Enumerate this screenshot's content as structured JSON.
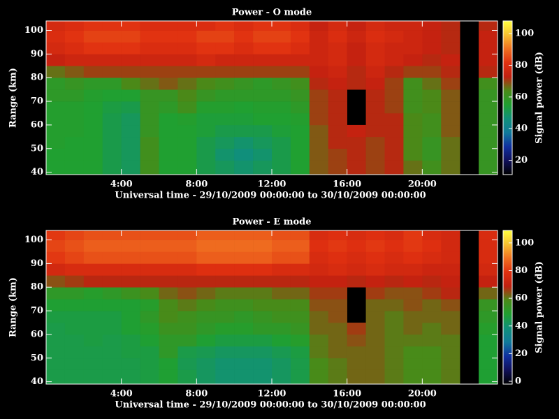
{
  "chart_data": [
    {
      "type": "heatmap",
      "title": "Power - O mode",
      "x_label": "Universal time - 29/10/2009 00:00:00 to 30/10/2009 00:00:00",
      "y_label": "Range (km)",
      "colorbar_label": "Signal power (dB)",
      "xbins": [
        0,
        1,
        2,
        3,
        4,
        5,
        6,
        7,
        8,
        9,
        10,
        11,
        12,
        13,
        14,
        15,
        16,
        17,
        18,
        19,
        20,
        21,
        22,
        23,
        24
      ],
      "ybins": [
        39,
        45,
        50,
        55,
        60,
        65,
        70,
        75,
        80,
        85,
        90,
        95,
        100,
        104
      ],
      "xlim": [
        0,
        24
      ],
      "ylim": [
        39,
        104
      ],
      "clim": [
        11,
        108
      ],
      "xticks": [
        {
          "value": 4,
          "label": "4:00"
        },
        {
          "value": 8,
          "label": "8:00"
        },
        {
          "value": 12,
          "label": "12:00"
        },
        {
          "value": 16,
          "label": "16:00"
        },
        {
          "value": 20,
          "label": "20:00"
        }
      ],
      "yticks": [
        40,
        50,
        60,
        70,
        80,
        90,
        100
      ],
      "cticks": [
        20,
        40,
        60,
        80,
        100
      ],
      "colors": [
        "#000000",
        "#10105a",
        "#1030a0",
        "#107a9a",
        "#10907a",
        "#20a030",
        "#4a8a18",
        "#c02010",
        "#e03010",
        "#f07020",
        "#f8c030",
        "#ffff40"
      ],
      "values": [
        [
          55,
          55,
          55,
          52,
          50,
          62,
          55,
          55,
          52,
          50,
          48,
          50,
          52,
          55,
          68,
          70,
          72,
          70,
          72,
          66,
          62,
          66,
          null,
          60
        ],
        [
          55,
          55,
          55,
          52,
          50,
          62,
          55,
          55,
          52,
          48,
          46,
          48,
          52,
          55,
          68,
          70,
          72,
          70,
          72,
          64,
          60,
          66,
          null,
          60
        ],
        [
          56,
          55,
          55,
          52,
          50,
          62,
          55,
          55,
          52,
          50,
          48,
          50,
          52,
          55,
          68,
          72,
          72,
          70,
          72,
          64,
          60,
          66,
          null,
          60
        ],
        [
          56,
          56,
          55,
          52,
          50,
          60,
          55,
          55,
          54,
          52,
          52,
          52,
          54,
          55,
          68,
          72,
          74,
          72,
          72,
          64,
          62,
          68,
          null,
          60
        ],
        [
          56,
          56,
          55,
          52,
          50,
          60,
          55,
          56,
          54,
          54,
          54,
          55,
          55,
          56,
          70,
          72,
          null,
          72,
          72,
          64,
          62,
          68,
          null,
          60
        ],
        [
          56,
          56,
          55,
          53,
          52,
          60,
          58,
          62,
          56,
          56,
          55,
          56,
          56,
          58,
          70,
          72,
          null,
          72,
          70,
          62,
          64,
          68,
          null,
          60
        ],
        [
          58,
          58,
          56,
          55,
          55,
          60,
          60,
          64,
          60,
          58,
          58,
          58,
          58,
          60,
          70,
          72,
          null,
          72,
          70,
          62,
          64,
          68,
          null,
          60
        ],
        [
          58,
          60,
          58,
          58,
          64,
          66,
          68,
          66,
          64,
          62,
          60,
          58,
          60,
          62,
          72,
          74,
          72,
          74,
          70,
          62,
          66,
          70,
          null,
          62
        ],
        [
          66,
          68,
          70,
          70,
          70,
          70,
          70,
          70,
          70,
          70,
          70,
          70,
          70,
          70,
          74,
          76,
          72,
          76,
          72,
          70,
          70,
          72,
          null,
          72
        ],
        [
          74,
          76,
          76,
          76,
          76,
          76,
          76,
          76,
          78,
          76,
          76,
          76,
          76,
          76,
          76,
          78,
          74,
          78,
          76,
          74,
          72,
          74,
          null,
          74
        ],
        [
          78,
          80,
          82,
          82,
          82,
          80,
          80,
          80,
          82,
          82,
          80,
          82,
          82,
          80,
          76,
          78,
          74,
          78,
          76,
          76,
          74,
          72,
          null,
          74
        ],
        [
          80,
          82,
          84,
          84,
          84,
          82,
          82,
          82,
          84,
          84,
          82,
          84,
          84,
          82,
          76,
          80,
          76,
          80,
          78,
          76,
          74,
          72,
          null,
          74
        ],
        [
          78,
          80,
          82,
          82,
          82,
          80,
          80,
          80,
          80,
          82,
          80,
          82,
          82,
          80,
          74,
          78,
          74,
          78,
          76,
          76,
          74,
          72,
          null,
          72
        ]
      ]
    },
    {
      "type": "heatmap",
      "title": "Power - E mode",
      "x_label": "Universal time - 29/10/2009 00:00:00 to 30/10/2009 00:00:00",
      "y_label": "Range (km)",
      "colorbar_label": "Signal power (dB)",
      "xbins": [
        0,
        1,
        2,
        3,
        4,
        5,
        6,
        7,
        8,
        9,
        10,
        11,
        12,
        13,
        14,
        15,
        16,
        17,
        18,
        19,
        20,
        21,
        22,
        23,
        24
      ],
      "ybins": [
        39,
        45,
        50,
        55,
        60,
        65,
        70,
        75,
        80,
        85,
        90,
        95,
        100,
        104
      ],
      "xlim": [
        0,
        24
      ],
      "ylim": [
        39,
        104
      ],
      "clim": [
        -2,
        109
      ],
      "xticks": [
        {
          "value": 4,
          "label": "4:00"
        },
        {
          "value": 8,
          "label": "8:00"
        },
        {
          "value": 12,
          "label": "12:00"
        },
        {
          "value": 16,
          "label": "16:00"
        },
        {
          "value": 20,
          "label": "20:00"
        }
      ],
      "yticks": [
        40,
        50,
        60,
        70,
        80,
        90,
        100
      ],
      "cticks": [
        0,
        20,
        40,
        60,
        80,
        100
      ],
      "colors": [
        "#000000",
        "#10105a",
        "#1030a0",
        "#107a9a",
        "#10907a",
        "#20a030",
        "#4a8a18",
        "#c02010",
        "#e03010",
        "#f07020",
        "#f8c030",
        "#ffff40"
      ],
      "values": [
        [
          45,
          45,
          45,
          45,
          45,
          46,
          48,
          45,
          42,
          40,
          40,
          40,
          42,
          45,
          58,
          60,
          62,
          62,
          60,
          58,
          58,
          60,
          null,
          48
        ],
        [
          45,
          45,
          45,
          45,
          45,
          46,
          48,
          44,
          42,
          40,
          40,
          40,
          42,
          45,
          58,
          60,
          62,
          62,
          60,
          58,
          58,
          60,
          null,
          48
        ],
        [
          45,
          45,
          45,
          45,
          46,
          46,
          52,
          45,
          44,
          42,
          42,
          42,
          44,
          46,
          60,
          62,
          62,
          62,
          60,
          58,
          58,
          60,
          null,
          48
        ],
        [
          45,
          45,
          46,
          45,
          46,
          48,
          52,
          52,
          48,
          46,
          46,
          46,
          48,
          50,
          60,
          62,
          64,
          62,
          60,
          60,
          60,
          60,
          null,
          48
        ],
        [
          45,
          46,
          46,
          46,
          48,
          50,
          55,
          55,
          52,
          50,
          50,
          52,
          52,
          54,
          62,
          62,
          66,
          62,
          60,
          62,
          60,
          62,
          null,
          50
        ],
        [
          46,
          46,
          46,
          46,
          48,
          52,
          58,
          56,
          54,
          54,
          52,
          54,
          56,
          56,
          62,
          64,
          null,
          62,
          60,
          62,
          62,
          62,
          null,
          52
        ],
        [
          48,
          48,
          48,
          48,
          48,
          50,
          58,
          60,
          58,
          56,
          56,
          58,
          58,
          58,
          64,
          64,
          null,
          62,
          62,
          64,
          62,
          64,
          null,
          54
        ],
        [
          52,
          52,
          50,
          52,
          55,
          58,
          62,
          64,
          62,
          60,
          60,
          60,
          62,
          62,
          66,
          66,
          null,
          66,
          64,
          64,
          66,
          68,
          null,
          62
        ],
        [
          64,
          66,
          68,
          68,
          68,
          68,
          68,
          68,
          68,
          68,
          68,
          68,
          68,
          68,
          70,
          70,
          68,
          70,
          68,
          70,
          68,
          70,
          null,
          70
        ],
        [
          74,
          76,
          76,
          76,
          76,
          76,
          76,
          76,
          78,
          78,
          78,
          78,
          76,
          76,
          74,
          76,
          74,
          76,
          74,
          74,
          72,
          72,
          null,
          74
        ],
        [
          80,
          82,
          84,
          84,
          84,
          84,
          84,
          84,
          86,
          86,
          86,
          86,
          84,
          84,
          76,
          78,
          76,
          78,
          76,
          78,
          76,
          74,
          null,
          76
        ],
        [
          82,
          84,
          86,
          86,
          86,
          86,
          86,
          86,
          88,
          88,
          88,
          88,
          86,
          86,
          78,
          80,
          78,
          80,
          78,
          80,
          78,
          74,
          null,
          76
        ],
        [
          80,
          82,
          84,
          84,
          84,
          84,
          84,
          84,
          86,
          86,
          86,
          86,
          84,
          84,
          76,
          78,
          76,
          78,
          76,
          80,
          76,
          74,
          null,
          76
        ]
      ]
    }
  ]
}
